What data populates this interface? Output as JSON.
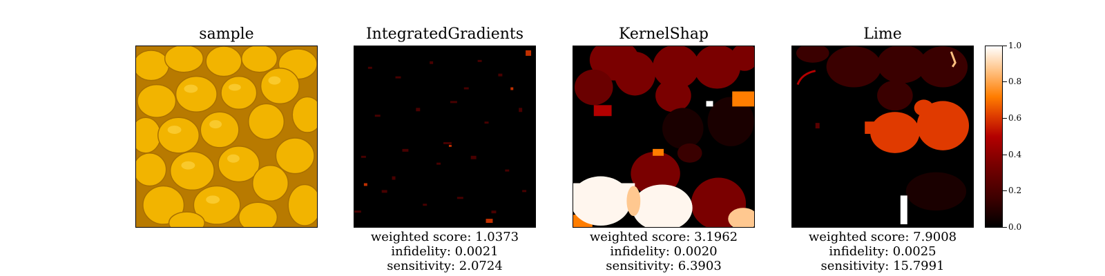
{
  "panels": [
    {
      "title": "sample",
      "metrics": []
    },
    {
      "title": "IntegratedGradients",
      "metrics": [
        "weighted score: 1.0373",
        "infidelity: 0.0021",
        "sensitivity: 2.0724"
      ]
    },
    {
      "title": "KernelShap",
      "metrics": [
        "weighted score: 3.1962",
        "infidelity: 0.0020",
        "sensitivity: 6.3903"
      ]
    },
    {
      "title": "Lime",
      "metrics": [
        "weighted score: 7.9008",
        "infidelity: 0.0025",
        "sensitivity: 15.7991"
      ]
    }
  ],
  "colorbar": {
    "ticks": [
      "0.0",
      "0.2",
      "0.4",
      "0.6",
      "0.8",
      "1.0"
    ],
    "range": [
      0.0,
      1.0
    ],
    "colormap": [
      "#000000",
      "#7a0000",
      "#b30000",
      "#ff7d00",
      "#ffffff"
    ]
  },
  "colors": {
    "lemon": "#f2b400",
    "lemon_dark": "#c98a00",
    "background": "#000000"
  }
}
